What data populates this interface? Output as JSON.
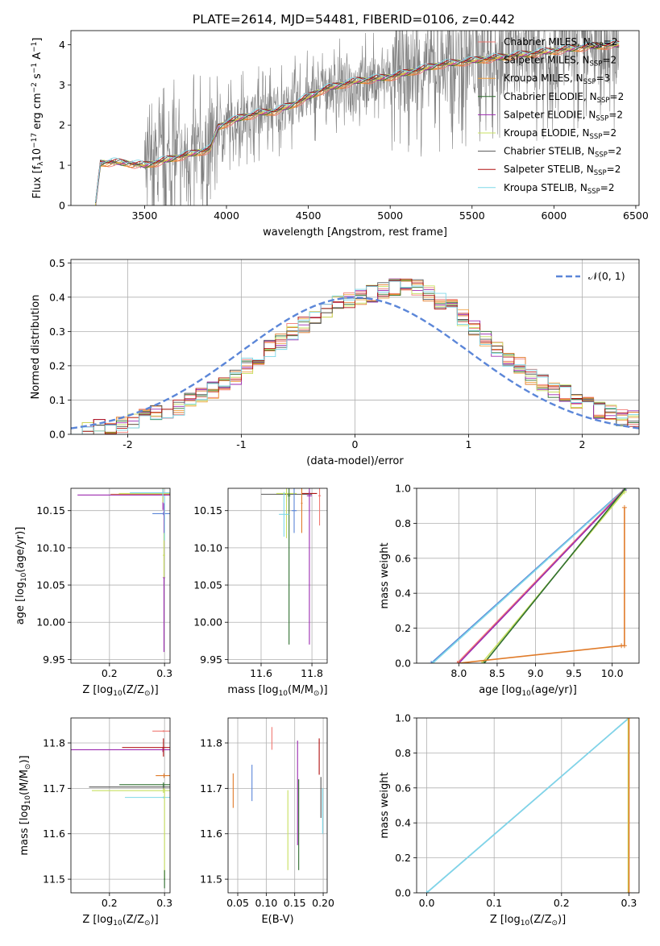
{
  "figure_title": "PLATE=2614, MJD=54481, FIBERID=0106, z=0.442",
  "colors": {
    "series": [
      "#f07a74",
      "#e07b2a",
      "#f0a040",
      "#2f6f2f",
      "#9b2ab0",
      "#c8e060",
      "#555555",
      "#b01010",
      "#7fd8e8"
    ],
    "normal_line": "#5b86d8",
    "observed_spectrum": "#808080",
    "grid": "#b0b0b0"
  },
  "chart_data": [
    {
      "id": "spectrum",
      "type": "line",
      "xlabel": "wavelength [Angstrom, rest frame]",
      "ylabel": "Flux [f_λ10^-17 erg cm^-2 s^-1 A^-1]",
      "xlim": [
        3050,
        6520
      ],
      "ylim": [
        0,
        4.35
      ],
      "xticks": [
        3500,
        4000,
        4500,
        5000,
        5500,
        6000,
        6500
      ],
      "yticks": [
        0,
        1,
        2,
        3,
        4
      ],
      "grid": false,
      "legend_position": "upper-right",
      "legend": [
        {
          "base": "Chabrier MILES, N",
          "sub": "SSP",
          "tail": "=2",
          "color": "#f07a74"
        },
        {
          "base": "Salpeter MILES, N",
          "sub": "SSP",
          "tail": "=2",
          "color": "#e07b2a"
        },
        {
          "base": "Kroupa MILES, N",
          "sub": "SSP",
          "tail": "=3",
          "color": "#f0a040"
        },
        {
          "base": "Chabrier ELODIE, N",
          "sub": "SSP",
          "tail": "=2",
          "color": "#2f6f2f"
        },
        {
          "base": "Salpeter ELODIE, N",
          "sub": "SSP",
          "tail": "=2",
          "color": "#9b2ab0"
        },
        {
          "base": "Kroupa ELODIE, N",
          "sub": "SSP",
          "tail": "=2",
          "color": "#c8e060"
        },
        {
          "base": "Chabrier STELIB, N",
          "sub": "SSP",
          "tail": "=2",
          "color": "#555555"
        },
        {
          "base": "Salpeter STELIB, N",
          "sub": "SSP",
          "tail": "=2",
          "color": "#b01010"
        },
        {
          "base": "Kroupa STELIB, N",
          "sub": "SSP",
          "tail": "=2",
          "color": "#7fd8e8"
        }
      ],
      "model_continuum": {
        "x": [
          3200,
          3230,
          3300,
          3400,
          3500,
          3600,
          3700,
          3800,
          3900,
          3950,
          4000,
          4100,
          4200,
          4300,
          4400,
          4500,
          4600,
          4700,
          4800,
          4900,
          5000,
          5100,
          5200,
          5300,
          5400,
          5500,
          5600,
          5700,
          5800,
          5900,
          6000,
          6100,
          6200,
          6300,
          6400
        ],
        "y": [
          0,
          1.05,
          1.08,
          1.05,
          1.0,
          1.1,
          1.2,
          1.3,
          1.4,
          1.95,
          2.05,
          2.2,
          2.3,
          2.35,
          2.5,
          2.7,
          2.9,
          3.0,
          3.1,
          3.15,
          3.2,
          3.3,
          3.4,
          3.5,
          3.55,
          3.6,
          3.65,
          3.7,
          3.75,
          3.8,
          3.85,
          3.9,
          3.95,
          3.98,
          4.0
        ]
      }
    },
    {
      "id": "residuals",
      "type": "step-histogram",
      "xlabel": "(data-model)/error",
      "ylabel": "Normed distribution",
      "xlim": [
        -2.5,
        2.5
      ],
      "ylim": [
        0,
        0.51
      ],
      "xticks": [
        -2,
        -1,
        0,
        1,
        2
      ],
      "yticks": [
        0.0,
        0.1,
        0.2,
        0.3,
        0.4,
        0.5
      ],
      "grid": true,
      "legend_position": "upper-right",
      "legend": [
        {
          "label": "𝒩(0, 1)",
          "color": "#5b86d8",
          "style": "dashed"
        }
      ],
      "bin_width": 0.1,
      "bins_start": -2.5,
      "reference_values": [
        0.01,
        0.015,
        0.02,
        0.025,
        0.03,
        0.04,
        0.05,
        0.06,
        0.065,
        0.08,
        0.1,
        0.115,
        0.13,
        0.15,
        0.17,
        0.2,
        0.22,
        0.25,
        0.27,
        0.3,
        0.32,
        0.34,
        0.36,
        0.38,
        0.39,
        0.4,
        0.41,
        0.42,
        0.43,
        0.44,
        0.43,
        0.41,
        0.39,
        0.37,
        0.34,
        0.31,
        0.28,
        0.25,
        0.22,
        0.2,
        0.17,
        0.15,
        0.13,
        0.12,
        0.1,
        0.085,
        0.07,
        0.06,
        0.05,
        0.045
      ],
      "normal_curve": {
        "mu": 0,
        "sigma": 1
      }
    },
    {
      "id": "age_vs_Z",
      "type": "errorbar",
      "xlabel": "Z [log10(Z/Z☉)]",
      "ylabel": "age [log10(age/yr)]",
      "xlim": [
        0.13,
        0.31
      ],
      "ylim": [
        9.945,
        10.18
      ],
      "xticks": [
        0.2,
        0.3
      ],
      "yticks": [
        9.95,
        10.0,
        10.05,
        10.1,
        10.15
      ],
      "grid": true,
      "points": [
        {
          "x": 0.297,
          "y": 10.172,
          "xerr": 0.095,
          "yerr": 0.004,
          "color": "#e07b2a"
        },
        {
          "x": 0.297,
          "y": 10.171,
          "xerr": 0.155,
          "yerr": 0.02,
          "color": "#9b2ab0"
        },
        {
          "x": 0.297,
          "y": 10.173,
          "xerr": 0.08,
          "yerr": 0.012,
          "color": "#c8e060"
        },
        {
          "x": 0.297,
          "y": 10.174,
          "xerr": 0.06,
          "yerr": 0.005,
          "color": "#7fd8e8"
        },
        {
          "x": 0.298,
          "y": 10.146,
          "xerr": 0.02,
          "yerr": 0.002,
          "color": "#5b86d8"
        },
        {
          "x": 0.299,
          "y": 10.06,
          "xerr": 0.002,
          "yerr": 0.1,
          "color": "#9b2ab0"
        },
        {
          "x": 0.299,
          "y": 10.09,
          "xerr": 0.002,
          "yerr": 0.03,
          "color": "#c8e060"
        },
        {
          "x": 0.3,
          "y": 10.14,
          "xerr": 0.001,
          "yerr": 0.03,
          "color": "#7fd8e8"
        }
      ]
    },
    {
      "id": "age_vs_mass",
      "type": "errorbar",
      "xlabel": "mass [log10(M/M☉)]",
      "ylabel": "",
      "xlim": [
        11.47,
        11.86
      ],
      "ylim": [
        9.945,
        10.18
      ],
      "xticks": [
        11.6,
        11.8
      ],
      "yticks": [
        9.95,
        10.0,
        10.05,
        10.1,
        10.15
      ],
      "grid": true,
      "points": [
        {
          "x": 11.79,
          "y": 10.173,
          "xerr": 0.03,
          "yerr": 0.003,
          "color": "#b01010"
        },
        {
          "x": 11.7,
          "y": 10.172,
          "xerr": 0.1,
          "yerr": 0.01,
          "color": "#555555"
        },
        {
          "x": 11.7,
          "y": 10.173,
          "xerr": 0.04,
          "yerr": 0.06,
          "color": "#c8e060"
        },
        {
          "x": 11.71,
          "y": 10.17,
          "xerr": 0.005,
          "yerr": 0.2,
          "color": "#2f6f2f"
        },
        {
          "x": 11.79,
          "y": 10.17,
          "xerr": 0.01,
          "yerr": 0.2,
          "color": "#9b2ab0"
        },
        {
          "x": 11.83,
          "y": 10.17,
          "xerr": 0.005,
          "yerr": 0.04,
          "color": "#f07a74"
        },
        {
          "x": 11.69,
          "y": 10.145,
          "xerr": 0.02,
          "yerr": 0.03,
          "color": "#7fd8e8"
        },
        {
          "x": 11.73,
          "y": 10.15,
          "xerr": 0.01,
          "yerr": 0.03,
          "color": "#5b86d8"
        },
        {
          "x": 11.76,
          "y": 10.16,
          "xerr": 0.003,
          "yerr": 0.04,
          "color": "#e07b2a"
        }
      ]
    },
    {
      "id": "mass_weight_vs_age",
      "type": "line",
      "xlabel": "age [log10(age/yr)]",
      "ylabel": "mass weight",
      "xlim": [
        7.45,
        10.35
      ],
      "ylim": [
        0,
        1.0
      ],
      "xticks": [
        8.0,
        8.5,
        9.0,
        9.5,
        10.0
      ],
      "yticks": [
        0.0,
        0.2,
        0.4,
        0.6,
        0.8,
        1.0
      ],
      "grid": true,
      "series": [
        {
          "x": [
            7.64,
            10.17
          ],
          "y": [
            0.0,
            1.0
          ],
          "color": "#5b86d8"
        },
        {
          "x": [
            7.66,
            10.18
          ],
          "y": [
            0.0,
            1.0
          ],
          "color": "#7fd8e8"
        },
        {
          "x": [
            7.98,
            10.17
          ],
          "y": [
            0.0,
            1.0
          ],
          "color": "#f07a74"
        },
        {
          "x": [
            8.0,
            10.16
          ],
          "y": [
            0.0,
            0.99
          ],
          "color": "#9b2ab0"
        },
        {
          "x": [
            8.3,
            10.16
          ],
          "y": [
            0.0,
            0.98
          ],
          "color": "#c8e060"
        },
        {
          "x": [
            8.33,
            10.17
          ],
          "y": [
            0.0,
            1.0
          ],
          "color": "#2f6f2f"
        },
        {
          "x": [
            8.0,
            10.12,
            10.16,
            10.16
          ],
          "y": [
            0.0,
            0.1,
            0.1,
            0.89
          ],
          "color": "#e07b2a"
        }
      ]
    },
    {
      "id": "mass_vs_Z",
      "type": "errorbar",
      "xlabel": "Z [log10(Z/Z☉)]",
      "ylabel": "mass [log10(M/M☉)]",
      "xlim": [
        0.13,
        0.31
      ],
      "ylim": [
        11.47,
        11.855
      ],
      "xticks": [
        0.2,
        0.3
      ],
      "yticks": [
        11.5,
        11.6,
        11.7,
        11.8
      ],
      "grid": true,
      "points": [
        {
          "x": 0.298,
          "y": 11.826,
          "xerr": 0.02,
          "yerr": 0.002,
          "color": "#f07a74"
        },
        {
          "x": 0.297,
          "y": 11.785,
          "xerr": 0.175,
          "yerr": 0.005,
          "color": "#9b2ab0"
        },
        {
          "x": 0.298,
          "y": 11.79,
          "xerr": 0.075,
          "yerr": 0.02,
          "color": "#b01010"
        },
        {
          "x": 0.299,
          "y": 11.728,
          "xerr": 0.015,
          "yerr": 0.005,
          "color": "#e07b2a"
        },
        {
          "x": 0.298,
          "y": 11.703,
          "xerr": 0.135,
          "yerr": 0.005,
          "color": "#555555"
        },
        {
          "x": 0.298,
          "y": 11.708,
          "xerr": 0.08,
          "yerr": 0.005,
          "color": "#2f6f2f"
        },
        {
          "x": 0.298,
          "y": 11.695,
          "xerr": 0.13,
          "yerr": 0.005,
          "color": "#c8e060"
        },
        {
          "x": 0.298,
          "y": 11.68,
          "xerr": 0.07,
          "yerr": 0.002,
          "color": "#7fd8e8"
        },
        {
          "x": 0.3,
          "y": 11.6,
          "xerr": 0.001,
          "yerr": 0.1,
          "color": "#c8e060"
        },
        {
          "x": 0.3,
          "y": 11.5,
          "xerr": 0.001,
          "yerr": 0.02,
          "color": "#2f6f2f"
        }
      ]
    },
    {
      "id": "mass_vs_EBV",
      "type": "errorbar",
      "xlabel": "E(B-V)",
      "ylabel": "",
      "xlim": [
        0.033,
        0.207
      ],
      "ylim": [
        11.47,
        11.855
      ],
      "xticks": [
        0.05,
        0.1,
        0.15,
        0.2
      ],
      "yticks": [
        11.5,
        11.6,
        11.7,
        11.8
      ],
      "grid": true,
      "points": [
        {
          "x": 0.042,
          "y": 11.695,
          "xerr": 0.0,
          "yerr": 0.038,
          "color": "#e07b2a"
        },
        {
          "x": 0.075,
          "y": 11.712,
          "xerr": 0.0,
          "yerr": 0.04,
          "color": "#5b86d8"
        },
        {
          "x": 0.11,
          "y": 11.81,
          "xerr": 0.0,
          "yerr": 0.025,
          "color": "#f07a74"
        },
        {
          "x": 0.138,
          "y": 11.608,
          "xerr": 0.0,
          "yerr": 0.088,
          "color": "#c8e060"
        },
        {
          "x": 0.155,
          "y": 11.69,
          "xerr": 0.0,
          "yerr": 0.115,
          "color": "#9b2ab0"
        },
        {
          "x": 0.157,
          "y": 11.62,
          "xerr": 0.0,
          "yerr": 0.1,
          "color": "#2f6f2f"
        },
        {
          "x": 0.193,
          "y": 11.77,
          "xerr": 0.0,
          "yerr": 0.04,
          "color": "#b01010"
        },
        {
          "x": 0.196,
          "y": 11.68,
          "xerr": 0.0,
          "yerr": 0.045,
          "color": "#555555"
        },
        {
          "x": 0.199,
          "y": 11.65,
          "xerr": 0.0,
          "yerr": 0.05,
          "color": "#7fd8e8"
        }
      ]
    },
    {
      "id": "mass_weight_vs_Z",
      "type": "line",
      "xlabel": "Z [log10(Z/Z☉)]",
      "ylabel": "mass weight",
      "xlim": [
        -0.015,
        0.315
      ],
      "ylim": [
        0,
        1.0
      ],
      "xticks": [
        0.0,
        0.1,
        0.2,
        0.3
      ],
      "yticks": [
        0.0,
        0.2,
        0.4,
        0.6,
        0.8,
        1.0
      ],
      "grid": true,
      "series": [
        {
          "x": [
            0.0,
            0.3
          ],
          "y": [
            0.0,
            1.0
          ],
          "color": "#5b86d8"
        },
        {
          "x": [
            0.0,
            0.3
          ],
          "y": [
            0.0,
            1.0
          ],
          "color": "#7fd8e8"
        },
        {
          "x": [
            0.299,
            0.299
          ],
          "y": [
            0.0,
            1.0
          ],
          "color": "#c8e060"
        },
        {
          "x": [
            0.3,
            0.3
          ],
          "y": [
            0.0,
            1.0
          ],
          "color": "#e07b2a"
        }
      ]
    }
  ]
}
